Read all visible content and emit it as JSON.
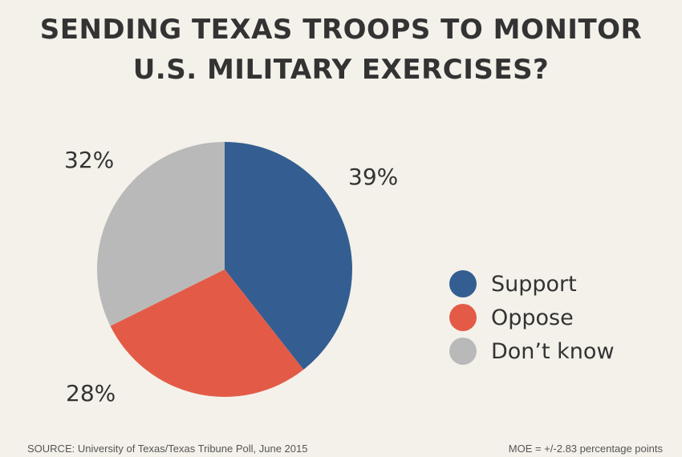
{
  "title_lines": [
    "SENDING TEXAS TROOPS TO MONITOR",
    "U.S. MILITARY EXERCISES?"
  ],
  "chart_data": {
    "type": "pie",
    "title": "SENDING TEXAS TROOPS TO MONITOR U.S. MILITARY EXERCISES?",
    "categories": [
      "Support",
      "Oppose",
      "Don’t know"
    ],
    "values": [
      39,
      28,
      32
    ],
    "labels": [
      "39%",
      "28%",
      "32%"
    ],
    "colors": [
      "#345e91",
      "#e35b47",
      "#b9b9b9"
    ],
    "legend_position": "right"
  },
  "footer": {
    "source": "SOURCE: University of Texas/Texas Tribune Poll, June 2015",
    "moe": "MOE = +/-2.83 percentage points"
  }
}
